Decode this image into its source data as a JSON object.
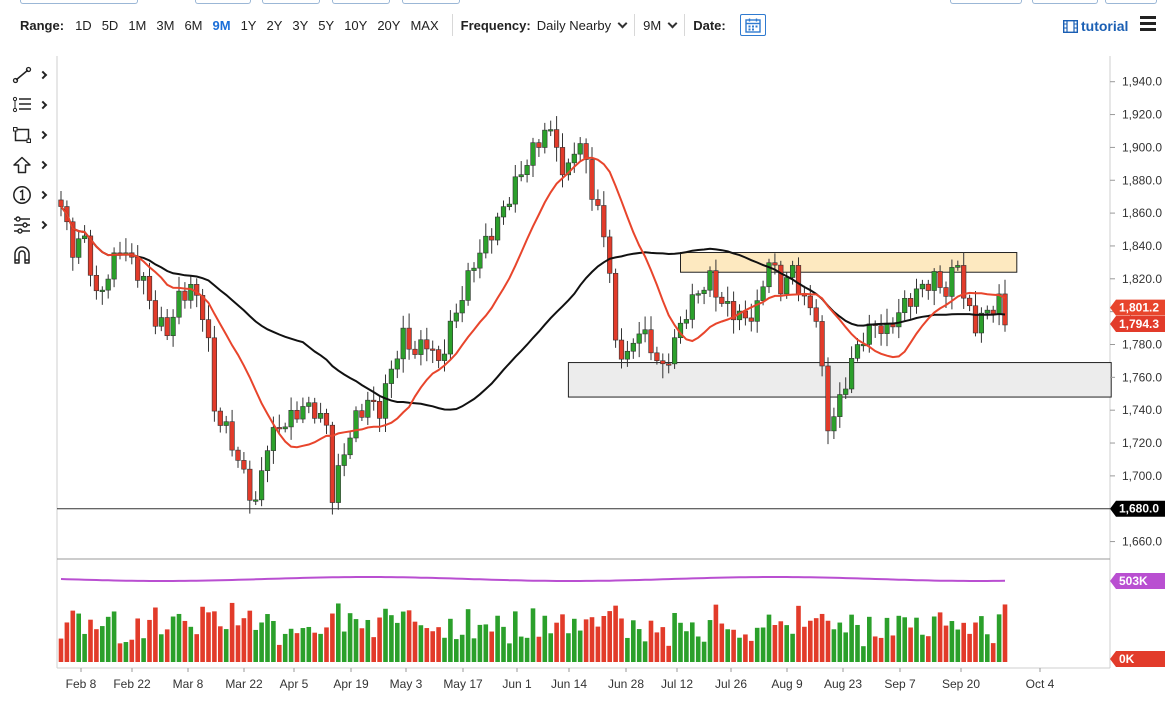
{
  "toolbar": {
    "range_label": "Range:",
    "ranges": [
      "1D",
      "5D",
      "1M",
      "3M",
      "6M",
      "9M",
      "1Y",
      "2Y",
      "3Y",
      "5Y",
      "10Y",
      "20Y",
      "MAX"
    ],
    "active_range": "9M",
    "frequency_label": "Frequency:",
    "frequency_value": "Daily Nearby",
    "period_value": "9M",
    "date_label": "Date:",
    "tutorial_label": "tutorial"
  },
  "left_tools": [
    "trendline-tool-icon",
    "fibonacci-tool-icon",
    "rectangle-tool-icon",
    "arrow-tool-icon",
    "counter-tool-icon",
    "indicators-tool-icon",
    "magnet-tool-icon"
  ],
  "colors": {
    "up": "#2ba02b",
    "down": "#e23b2a",
    "ma_short": "#e8452c",
    "ma_long": "#111111",
    "volume_avg": "#b94fd1",
    "zone_resistance": "#fde9c0",
    "zone_support": "#ececec"
  },
  "chart_data": {
    "type": "candlestick",
    "price_axis": {
      "ticks": [
        1660,
        1680,
        1700,
        1720,
        1740,
        1760,
        1780,
        1800,
        1820,
        1840,
        1860,
        1880,
        1900,
        1920,
        1940
      ],
      "tick_labels": [
        "1,660.0",
        "1,680.0",
        "1,700.0",
        "1,720.0",
        "1,740.0",
        "1,760.0",
        "1,780.0",
        "1,800.0",
        "1,820.0",
        "1,840.0",
        "1,860.0",
        "1,880.0",
        "1,900.0",
        "1,920.0",
        "1,940.0"
      ],
      "range": [
        1650,
        1952
      ]
    },
    "x_labels": [
      "Feb 8",
      "Feb 22",
      "Mar 8",
      "Mar 22",
      "Apr 5",
      "Apr 19",
      "May 3",
      "May 17",
      "Jun 1",
      "Jun 14",
      "Jun 28",
      "Jul 12",
      "Jul 26",
      "Aug 9",
      "Aug 23",
      "Sep 7",
      "Sep 20",
      "Oct 4"
    ],
    "price_badges": [
      {
        "label": "1,801.2",
        "value": 1801.2,
        "color": "#e8452c"
      },
      {
        "label": "1,794.3",
        "value": 1794.3,
        "color": "#e23b2a"
      },
      {
        "label": "1,680.0",
        "value": 1680.0,
        "color": "#000000"
      }
    ],
    "horizontal_line": 1680,
    "zones": [
      {
        "name": "resistance",
        "from_session": 105,
        "to_session": 162,
        "low": 1824,
        "high": 1836
      },
      {
        "name": "support",
        "from_session": 86,
        "to_session": 178,
        "low": 1748,
        "high": 1769
      }
    ],
    "volume_axis": {
      "labels": [
        "503K",
        "0K"
      ],
      "max_label": "503K",
      "min_label": "0K"
    },
    "keypoints": [
      {
        "i": 0,
        "c": 1864
      },
      {
        "i": 2,
        "c": 1838
      },
      {
        "i": 4,
        "c": 1845
      },
      {
        "i": 6,
        "c": 1808
      },
      {
        "i": 8,
        "c": 1822
      },
      {
        "i": 10,
        "c": 1840
      },
      {
        "i": 12,
        "c": 1830
      },
      {
        "i": 14,
        "c": 1818
      },
      {
        "i": 16,
        "c": 1795
      },
      {
        "i": 18,
        "c": 1788
      },
      {
        "i": 20,
        "c": 1808
      },
      {
        "i": 22,
        "c": 1815
      },
      {
        "i": 24,
        "c": 1800
      },
      {
        "i": 25,
        "c": 1780
      },
      {
        "i": 26,
        "c": 1740
      },
      {
        "i": 28,
        "c": 1728
      },
      {
        "i": 30,
        "c": 1710
      },
      {
        "i": 32,
        "c": 1690
      },
      {
        "i": 33,
        "c": 1683
      },
      {
        "i": 35,
        "c": 1720
      },
      {
        "i": 37,
        "c": 1730
      },
      {
        "i": 39,
        "c": 1735
      },
      {
        "i": 41,
        "c": 1742
      },
      {
        "i": 43,
        "c": 1740
      },
      {
        "i": 45,
        "c": 1730
      },
      {
        "i": 46,
        "c": 1688
      },
      {
        "i": 48,
        "c": 1715
      },
      {
        "i": 50,
        "c": 1735
      },
      {
        "i": 52,
        "c": 1745
      },
      {
        "i": 54,
        "c": 1740
      },
      {
        "i": 56,
        "c": 1765
      },
      {
        "i": 58,
        "c": 1785
      },
      {
        "i": 60,
        "c": 1775
      },
      {
        "i": 62,
        "c": 1782
      },
      {
        "i": 64,
        "c": 1768
      },
      {
        "i": 66,
        "c": 1790
      },
      {
        "i": 68,
        "c": 1810
      },
      {
        "i": 70,
        "c": 1830
      },
      {
        "i": 72,
        "c": 1842
      },
      {
        "i": 74,
        "c": 1855
      },
      {
        "i": 76,
        "c": 1870
      },
      {
        "i": 78,
        "c": 1885
      },
      {
        "i": 80,
        "c": 1898
      },
      {
        "i": 82,
        "c": 1910
      },
      {
        "i": 84,
        "c": 1905
      },
      {
        "i": 85,
        "c": 1880
      },
      {
        "i": 87,
        "c": 1900
      },
      {
        "i": 89,
        "c": 1895
      },
      {
        "i": 90,
        "c": 1870
      },
      {
        "i": 92,
        "c": 1850
      },
      {
        "i": 93,
        "c": 1822
      },
      {
        "i": 94,
        "c": 1780
      },
      {
        "i": 96,
        "c": 1772
      },
      {
        "i": 98,
        "c": 1790
      },
      {
        "i": 100,
        "c": 1778
      },
      {
        "i": 102,
        "c": 1764
      },
      {
        "i": 104,
        "c": 1782
      },
      {
        "i": 106,
        "c": 1800
      },
      {
        "i": 108,
        "c": 1812
      },
      {
        "i": 110,
        "c": 1820
      },
      {
        "i": 112,
        "c": 1805
      },
      {
        "i": 114,
        "c": 1800
      },
      {
        "i": 116,
        "c": 1795
      },
      {
        "i": 118,
        "c": 1802
      },
      {
        "i": 120,
        "c": 1832
      },
      {
        "i": 122,
        "c": 1815
      },
      {
        "i": 124,
        "c": 1825
      },
      {
        "i": 126,
        "c": 1806
      },
      {
        "i": 128,
        "c": 1798
      },
      {
        "i": 129,
        "c": 1762
      },
      {
        "i": 130,
        "c": 1730
      },
      {
        "i": 132,
        "c": 1745
      },
      {
        "i": 134,
        "c": 1770
      },
      {
        "i": 136,
        "c": 1785
      },
      {
        "i": 138,
        "c": 1792
      },
      {
        "i": 140,
        "c": 1788
      },
      {
        "i": 142,
        "c": 1800
      },
      {
        "i": 144,
        "c": 1808
      },
      {
        "i": 146,
        "c": 1815
      },
      {
        "i": 148,
        "c": 1820
      },
      {
        "i": 150,
        "c": 1812
      },
      {
        "i": 152,
        "c": 1832
      },
      {
        "i": 153,
        "c": 1808
      },
      {
        "i": 155,
        "c": 1792
      },
      {
        "i": 157,
        "c": 1800
      },
      {
        "i": 159,
        "c": 1806
      },
      {
        "i": 160,
        "c": 1794
      }
    ]
  }
}
